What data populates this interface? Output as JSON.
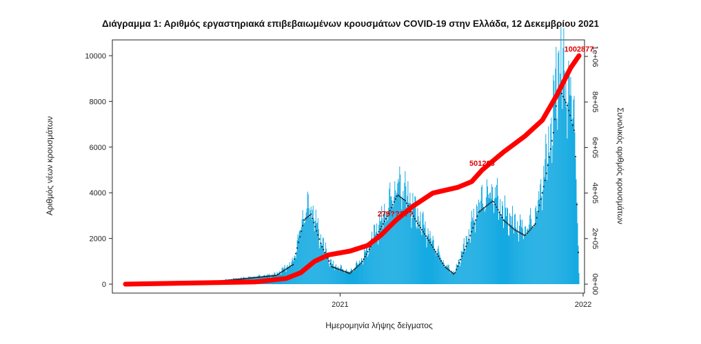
{
  "chart_data": {
    "type": "bar",
    "title": "Διάγραμμα 1: Αριθμός εργαστηριακά επιβεβαιωμένων κρουσμάτων COVID-19 στην Ελλάδα, 12 Δεκεμβρίου 2021",
    "xlabel": "Ημερομηνία λήψης δείγματος",
    "ylabel_left": "Αριθμός νέων κρουσμάτων",
    "ylabel_right": "Συνολικός αριθμός κρουσμάτων",
    "x_ticks": [
      "2021",
      "2022"
    ],
    "y_left_ticks": [
      0,
      2000,
      4000,
      6000,
      8000,
      10000
    ],
    "y_left_lim": [
      0,
      10500
    ],
    "y_right_ticks": [
      "0e+00",
      "2e+05",
      "4e+05",
      "6e+05",
      "8e+05",
      "1e+06"
    ],
    "y_right_lim": [
      0,
      1050000
    ],
    "x_range": [
      "2020-02-26",
      "2021-12-12"
    ],
    "bar_color": "#0aa6e0",
    "cumulative_color": "#ff0000",
    "daily_peaks": [
      {
        "date": "2020-03-20",
        "value": 95
      },
      {
        "date": "2020-06-01",
        "value": 20
      },
      {
        "date": "2020-08-15",
        "value": 280
      },
      {
        "date": "2020-10-01",
        "value": 450
      },
      {
        "date": "2020-10-25",
        "value": 1000
      },
      {
        "date": "2020-11-10",
        "value": 3300
      },
      {
        "date": "2020-11-20",
        "value": 3600
      },
      {
        "date": "2020-12-05",
        "value": 2000
      },
      {
        "date": "2020-12-20",
        "value": 900
      },
      {
        "date": "2021-01-15",
        "value": 550
      },
      {
        "date": "2021-02-01",
        "value": 1100
      },
      {
        "date": "2021-02-20",
        "value": 2300
      },
      {
        "date": "2021-03-10",
        "value": 3500
      },
      {
        "date": "2021-03-25",
        "value": 4600
      },
      {
        "date": "2021-04-05",
        "value": 4300
      },
      {
        "date": "2021-04-20",
        "value": 3300
      },
      {
        "date": "2021-05-10",
        "value": 2200
      },
      {
        "date": "2021-06-01",
        "value": 900
      },
      {
        "date": "2021-06-15",
        "value": 500
      },
      {
        "date": "2021-07-05",
        "value": 2200
      },
      {
        "date": "2021-07-20",
        "value": 3700
      },
      {
        "date": "2021-08-10",
        "value": 4300
      },
      {
        "date": "2021-08-25",
        "value": 3300
      },
      {
        "date": "2021-09-10",
        "value": 2800
      },
      {
        "date": "2021-09-25",
        "value": 2500
      },
      {
        "date": "2021-10-10",
        "value": 3100
      },
      {
        "date": "2021-10-25",
        "value": 5500
      },
      {
        "date": "2021-11-05",
        "value": 7800
      },
      {
        "date": "2021-11-12",
        "value": 10200
      },
      {
        "date": "2021-11-25",
        "value": 9200
      },
      {
        "date": "2021-12-06",
        "value": 7800
      },
      {
        "date": "2021-12-12",
        "value": 400
      }
    ],
    "cumulative": [
      {
        "date": "2020-02-26",
        "value": 0
      },
      {
        "date": "2020-09-01",
        "value": 10000
      },
      {
        "date": "2020-10-15",
        "value": 25000
      },
      {
        "date": "2020-11-05",
        "value": 50000
      },
      {
        "date": "2020-11-25",
        "value": 100000
      },
      {
        "date": "2020-12-15",
        "value": 128000
      },
      {
        "date": "2021-01-15",
        "value": 145000
      },
      {
        "date": "2021-02-10",
        "value": 170000
      },
      {
        "date": "2021-03-01",
        "value": 215000
      },
      {
        "date": "2021-03-22",
        "value": 279000
      },
      {
        "date": "2021-04-15",
        "value": 340000
      },
      {
        "date": "2021-05-15",
        "value": 400000
      },
      {
        "date": "2021-06-20",
        "value": 425000
      },
      {
        "date": "2021-07-10",
        "value": 450000
      },
      {
        "date": "2021-07-25",
        "value": 501000
      },
      {
        "date": "2021-08-25",
        "value": 580000
      },
      {
        "date": "2021-09-25",
        "value": 650000
      },
      {
        "date": "2021-10-20",
        "value": 720000
      },
      {
        "date": "2021-11-10",
        "value": 830000
      },
      {
        "date": "2021-11-30",
        "value": 950000
      },
      {
        "date": "2021-12-12",
        "value": 1002877
      }
    ],
    "annotations": [
      {
        "date": "2021-03-22",
        "value": 279000,
        "label": "279?????"
      },
      {
        "date": "2021-07-25",
        "value": 501000,
        "label": "501203"
      },
      {
        "date": "2021-12-12",
        "value": 1002877,
        "label": "1002877"
      }
    ]
  }
}
